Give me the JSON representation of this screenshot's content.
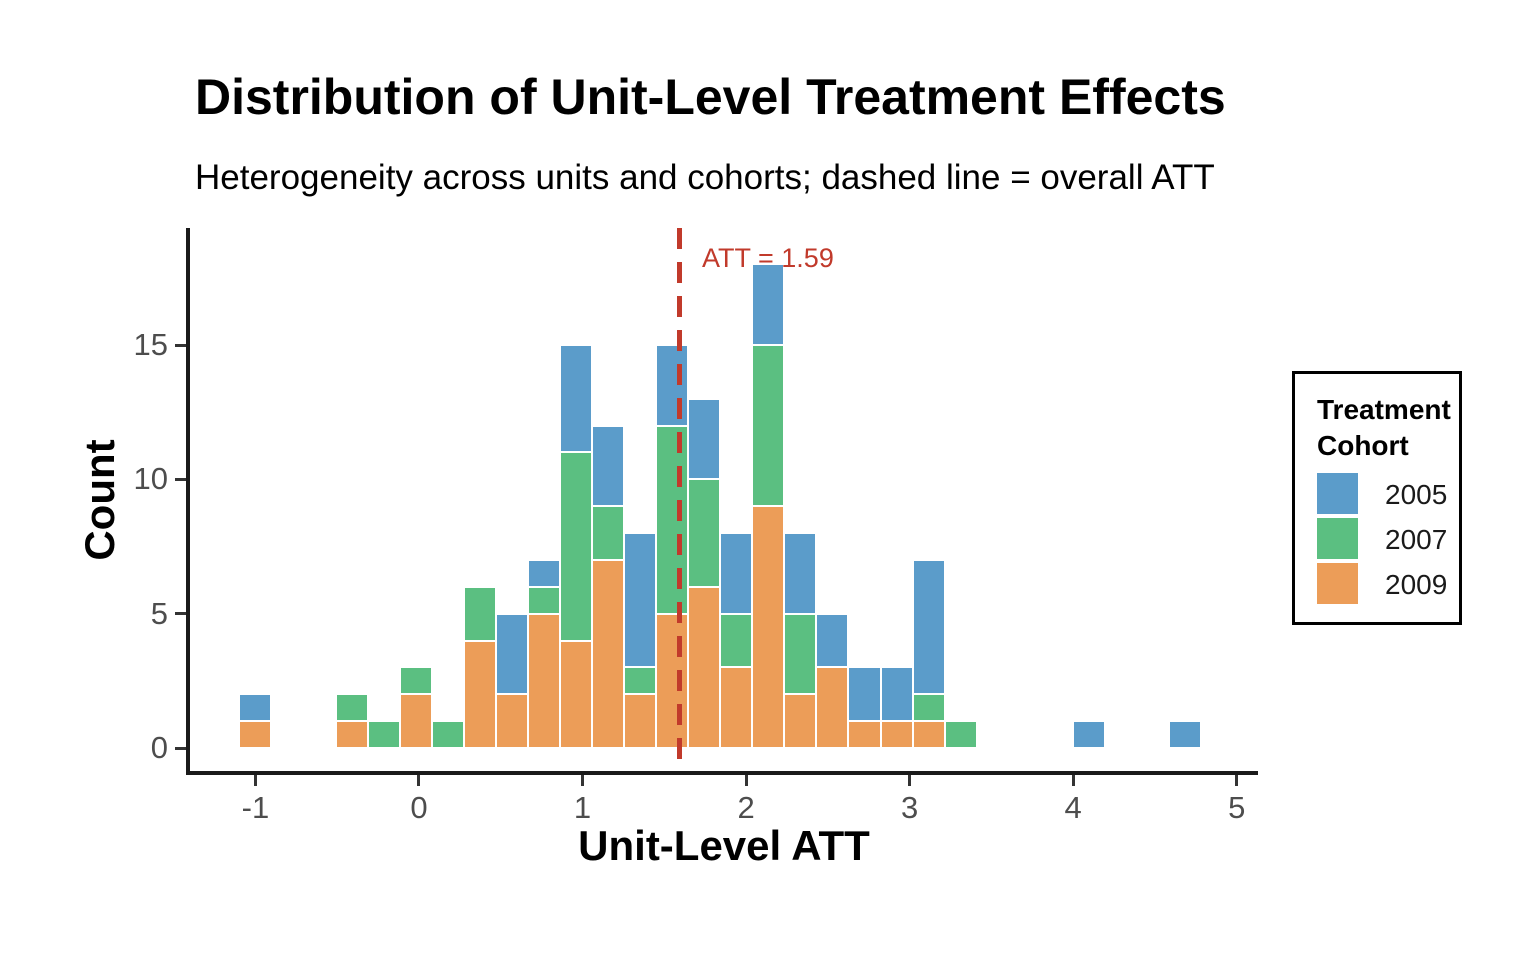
{
  "chart_data": {
    "type": "bar",
    "subtype": "stacked_histogram",
    "title": "Distribution of Unit-Level Treatment Effects",
    "subtitle": "Heterogeneity across units and cohorts; dashed line = overall ATT",
    "xlabel": "Unit-Level ATT",
    "ylabel": "Count",
    "x_ticks": [
      -1,
      0,
      1,
      2,
      3,
      4,
      5
    ],
    "y_ticks": [
      0,
      5,
      10,
      15
    ],
    "xlim": [
      -1.4,
      5.13
    ],
    "ylim": [
      0,
      19.35
    ],
    "grid": false,
    "binwidth": 0.196,
    "att_line": {
      "value": 1.59,
      "label": "ATT = 1.59",
      "color": "#C13A2B"
    },
    "stack_order": [
      "2009",
      "2007",
      "2005"
    ],
    "series": [
      {
        "name": "2005",
        "color": "#5B9CCA"
      },
      {
        "name": "2007",
        "color": "#5BBF81"
      },
      {
        "name": "2009",
        "color": "#EC9D58"
      }
    ],
    "legend": {
      "title_lines": [
        "Treatment",
        "Cohort"
      ],
      "position": "right",
      "entries": [
        {
          "label": "2005",
          "color": "#5B9CCA"
        },
        {
          "label": "2007",
          "color": "#5BBF81"
        },
        {
          "label": "2009",
          "color": "#EC9D58"
        }
      ]
    },
    "bins": [
      {
        "center": -1.0,
        "counts": {
          "2009": 1,
          "2007": 0,
          "2005": 1
        }
      },
      {
        "center": -0.412,
        "counts": {
          "2009": 1,
          "2007": 1,
          "2005": 0
        }
      },
      {
        "center": -0.216,
        "counts": {
          "2009": 0,
          "2007": 1,
          "2005": 0
        }
      },
      {
        "center": -0.02,
        "counts": {
          "2009": 2,
          "2007": 1,
          "2005": 0
        }
      },
      {
        "center": 0.176,
        "counts": {
          "2009": 0,
          "2007": 1,
          "2005": 0
        }
      },
      {
        "center": 0.372,
        "counts": {
          "2009": 4,
          "2007": 2,
          "2005": 0
        }
      },
      {
        "center": 0.568,
        "counts": {
          "2009": 2,
          "2007": 0,
          "2005": 3
        }
      },
      {
        "center": 0.764,
        "counts": {
          "2009": 5,
          "2007": 1,
          "2005": 1
        }
      },
      {
        "center": 0.96,
        "counts": {
          "2009": 4,
          "2007": 7,
          "2005": 4
        }
      },
      {
        "center": 1.156,
        "counts": {
          "2009": 7,
          "2007": 2,
          "2005": 3
        }
      },
      {
        "center": 1.352,
        "counts": {
          "2009": 2,
          "2007": 1,
          "2005": 5
        }
      },
      {
        "center": 1.548,
        "counts": {
          "2009": 5,
          "2007": 7,
          "2005": 3
        }
      },
      {
        "center": 1.744,
        "counts": {
          "2009": 6,
          "2007": 4,
          "2005": 3
        }
      },
      {
        "center": 1.94,
        "counts": {
          "2009": 3,
          "2007": 2,
          "2005": 3
        }
      },
      {
        "center": 2.136,
        "counts": {
          "2009": 9,
          "2007": 6,
          "2005": 3
        }
      },
      {
        "center": 2.332,
        "counts": {
          "2009": 2,
          "2007": 3,
          "2005": 3
        }
      },
      {
        "center": 2.528,
        "counts": {
          "2009": 3,
          "2007": 0,
          "2005": 2
        }
      },
      {
        "center": 2.724,
        "counts": {
          "2009": 1,
          "2007": 0,
          "2005": 2
        }
      },
      {
        "center": 2.92,
        "counts": {
          "2009": 1,
          "2007": 0,
          "2005": 2
        }
      },
      {
        "center": 3.116,
        "counts": {
          "2009": 1,
          "2007": 1,
          "2005": 5
        }
      },
      {
        "center": 3.312,
        "counts": {
          "2009": 0,
          "2007": 1,
          "2005": 0
        }
      },
      {
        "center": 4.096,
        "counts": {
          "2009": 0,
          "2007": 0,
          "2005": 1
        }
      },
      {
        "center": 4.684,
        "counts": {
          "2009": 0,
          "2007": 0,
          "2005": 1
        }
      }
    ]
  }
}
